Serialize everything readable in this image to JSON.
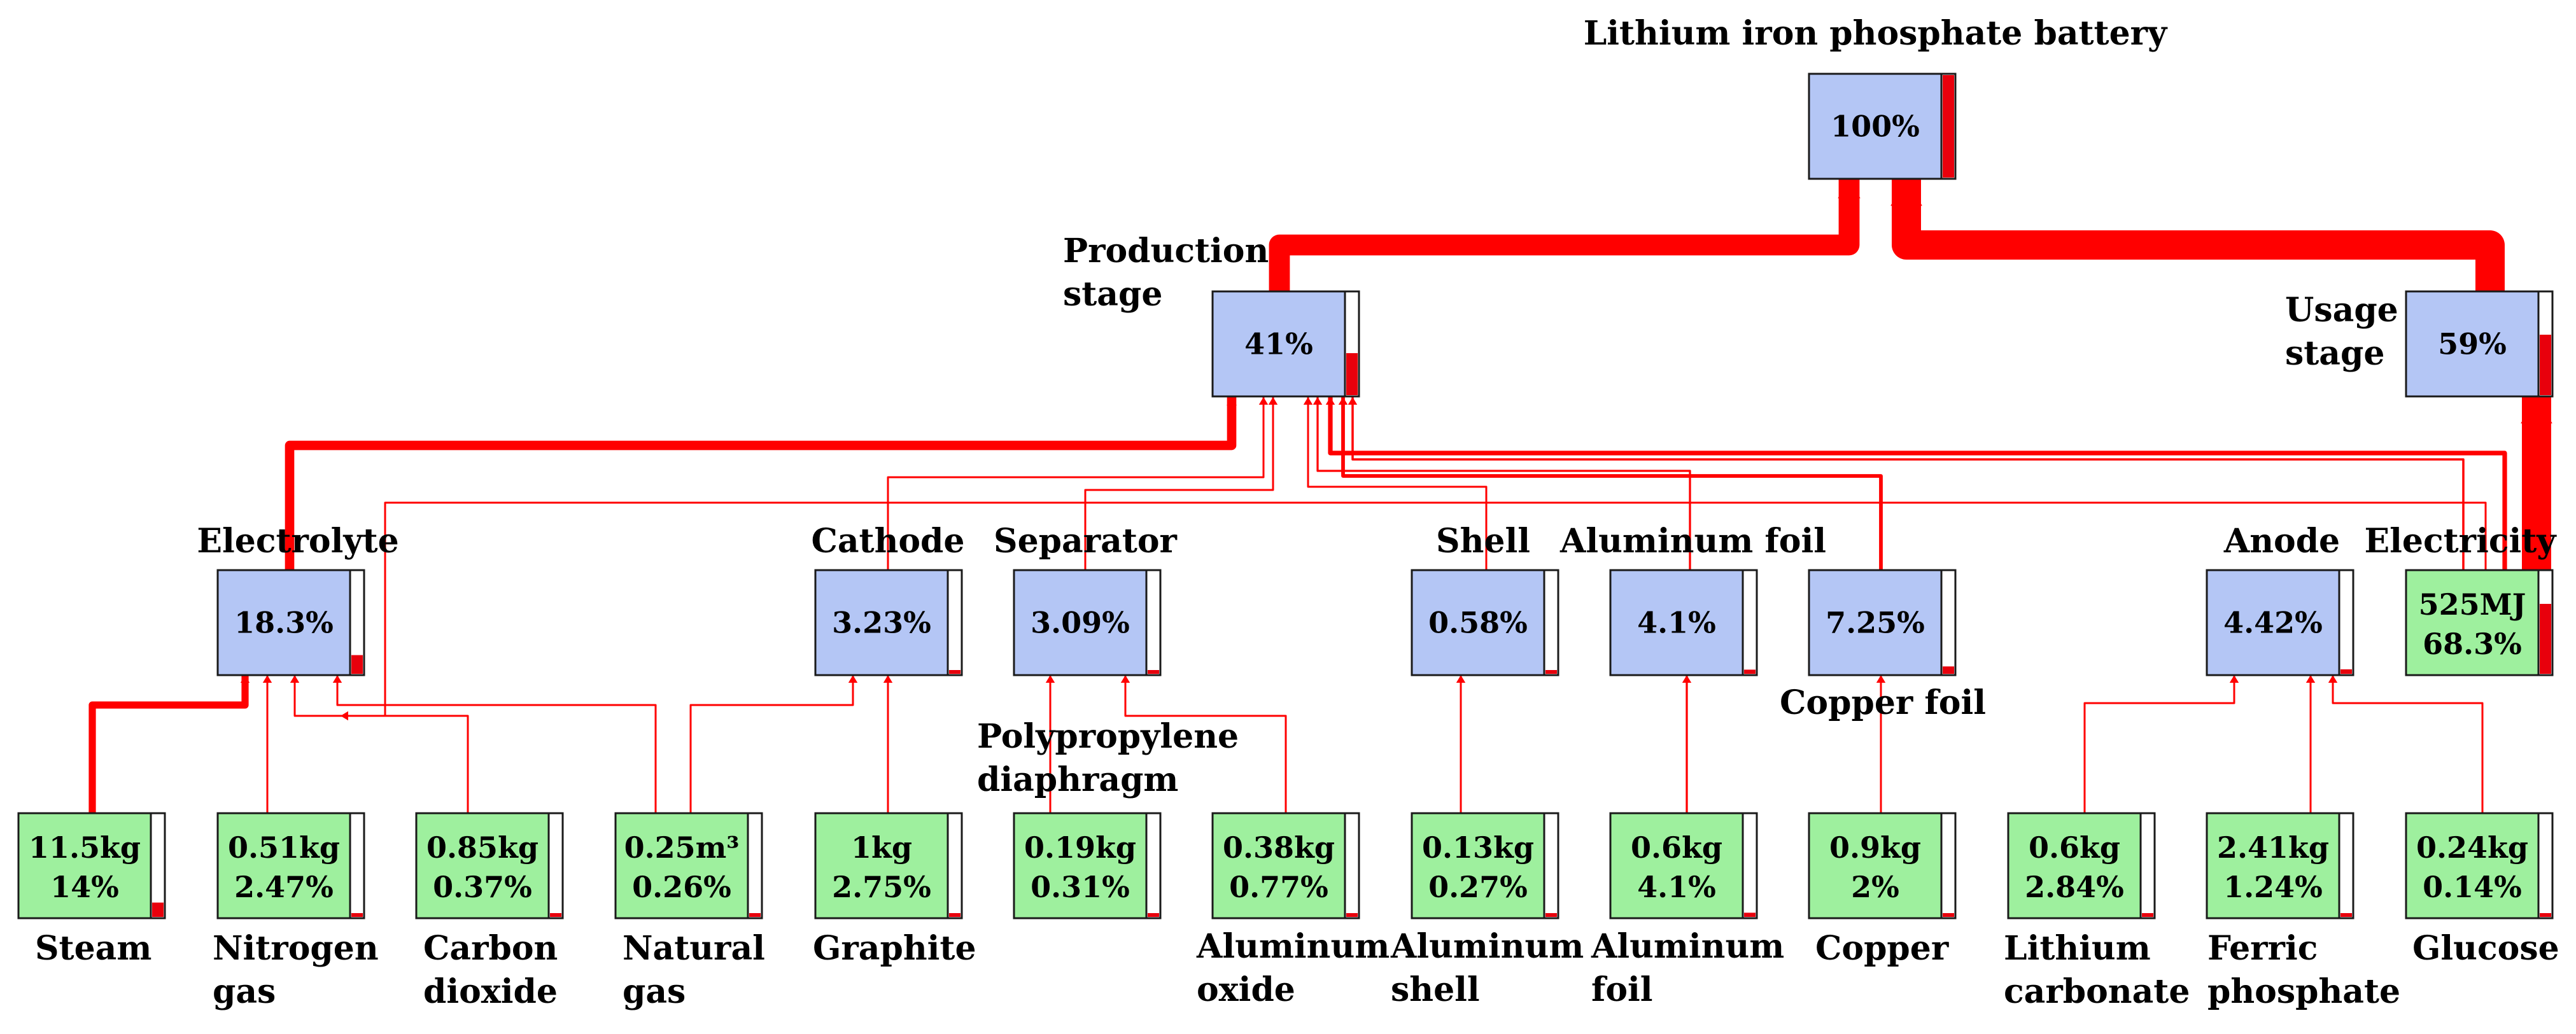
{
  "colors": {
    "process_fill": "#b4c6f5",
    "input_fill": "#9ef09e",
    "flow": "#ff0000",
    "gauge": "#e8000c"
  },
  "nodes": {
    "battery": {
      "label": [
        "Lithium iron phosphate battery"
      ],
      "values": [
        "100%"
      ],
      "level": 1.0,
      "kind": "process"
    },
    "production": {
      "label": [
        "Production",
        "stage"
      ],
      "values": [
        "41%"
      ],
      "level": 0.41,
      "kind": "process"
    },
    "usage": {
      "label": [
        "Usage",
        "stage"
      ],
      "values": [
        "59%"
      ],
      "level": 0.59,
      "kind": "process"
    },
    "electrolyte": {
      "label": [
        "Electrolyte"
      ],
      "values": [
        "18.3%"
      ],
      "level": 0.183,
      "kind": "process"
    },
    "cathode": {
      "label": [
        "Cathode"
      ],
      "values": [
        "3.23%"
      ],
      "level": 0.0323,
      "kind": "process"
    },
    "separator": {
      "label": [
        "Separator"
      ],
      "values": [
        "3.09%"
      ],
      "level": 0.0309,
      "kind": "process"
    },
    "shell": {
      "label": [
        "Shell"
      ],
      "values": [
        "0.58%"
      ],
      "level": 0.0058,
      "kind": "process"
    },
    "alfoil_p": {
      "label": [
        "Aluminum foil"
      ],
      "values": [
        "4.1%"
      ],
      "level": 0.041,
      "kind": "process"
    },
    "cufoil": {
      "label": [
        "Copper foil"
      ],
      "values": [
        "7.25%"
      ],
      "level": 0.0725,
      "kind": "process"
    },
    "anode": {
      "label": [
        "Anode"
      ],
      "values": [
        "4.42%"
      ],
      "level": 0.0442,
      "kind": "process"
    },
    "electricity": {
      "label": [
        "Electricity"
      ],
      "values": [
        "525MJ",
        "68.3%"
      ],
      "level": 0.683,
      "kind": "input"
    },
    "steam": {
      "label": [
        "Steam"
      ],
      "values": [
        "11.5kg",
        "14%"
      ],
      "level": 0.14,
      "kind": "input"
    },
    "nitrogen": {
      "label": [
        "Nitrogen",
        "gas"
      ],
      "values": [
        "0.51kg",
        "2.47%"
      ],
      "level": 0.0247,
      "kind": "input"
    },
    "co2": {
      "label": [
        "Carbon",
        "dioxide"
      ],
      "values": [
        "0.85kg",
        "0.37%"
      ],
      "level": 0.0037,
      "kind": "input"
    },
    "natgas": {
      "label": [
        "Natural",
        "gas"
      ],
      "values": [
        "0.25m³",
        "0.26%"
      ],
      "level": 0.0026,
      "kind": "input"
    },
    "graphite": {
      "label": [
        "Graphite"
      ],
      "values": [
        "1kg",
        "2.75%"
      ],
      "level": 0.0275,
      "kind": "input"
    },
    "pp": {
      "label": [
        "Polypropylene",
        "diaphragm"
      ],
      "values": [
        "0.19kg",
        "0.31%"
      ],
      "level": 0.0031,
      "kind": "input"
    },
    "al2o3": {
      "label": [
        "Aluminum",
        "oxide"
      ],
      "values": [
        "0.38kg",
        "0.77%"
      ],
      "level": 0.0077,
      "kind": "input"
    },
    "alshell": {
      "label": [
        "Aluminum",
        "shell"
      ],
      "values": [
        "0.13kg",
        "0.27%"
      ],
      "level": 0.0027,
      "kind": "input"
    },
    "alfoil_i": {
      "label": [
        "Aluminum",
        "foil"
      ],
      "values": [
        "0.6kg",
        "4.1%"
      ],
      "level": 0.041,
      "kind": "input"
    },
    "copper": {
      "label": [
        "Copper"
      ],
      "values": [
        "0.9kg",
        "2%"
      ],
      "level": 0.02,
      "kind": "input"
    },
    "li2co3": {
      "label": [
        "Lithium",
        "carbonate"
      ],
      "values": [
        "0.6kg",
        "2.84%"
      ],
      "level": 0.0284,
      "kind": "input"
    },
    "fepo4": {
      "label": [
        "Ferric",
        "phosphate"
      ],
      "values": [
        "2.41kg",
        "1.24%"
      ],
      "level": 0.0124,
      "kind": "input"
    },
    "glucose": {
      "label": [
        "Glucose"
      ],
      "values": [
        "0.24kg",
        "0.14%"
      ],
      "level": 0.0014,
      "kind": "input"
    }
  },
  "links": [
    {
      "from": "production",
      "to": "battery",
      "share": 0.41
    },
    {
      "from": "usage",
      "to": "battery",
      "share": 0.59
    },
    {
      "from": "electricity",
      "to": "usage",
      "share": 0.59
    },
    {
      "from": "electricity",
      "to": "production",
      "share": 0.09
    },
    {
      "from": "electrolyte",
      "to": "production",
      "share": 0.183
    },
    {
      "from": "cathode",
      "to": "production",
      "share": 0.0323
    },
    {
      "from": "separator",
      "to": "production",
      "share": 0.0309
    },
    {
      "from": "shell",
      "to": "production",
      "share": 0.0058
    },
    {
      "from": "alfoil_p",
      "to": "production",
      "share": 0.041
    },
    {
      "from": "cufoil",
      "to": "production",
      "share": 0.0725
    },
    {
      "from": "anode",
      "to": "production",
      "share": 0.0442
    },
    {
      "from": "steam",
      "to": "electrolyte",
      "share": 0.14
    },
    {
      "from": "nitrogen",
      "to": "electrolyte",
      "share": 0.0247
    },
    {
      "from": "co2",
      "to": "electrolyte",
      "share": 0.0037
    },
    {
      "from": "natgas",
      "to": "electrolyte",
      "share": 0.0026
    },
    {
      "from": "electricity",
      "to": "electrolyte",
      "share": 0.01
    },
    {
      "from": "graphite",
      "to": "cathode",
      "share": 0.0275
    },
    {
      "from": "natgas",
      "to": "cathode",
      "share": 0.0026
    },
    {
      "from": "pp",
      "to": "separator",
      "share": 0.0031
    },
    {
      "from": "al2o3",
      "to": "separator",
      "share": 0.0077
    },
    {
      "from": "alshell",
      "to": "shell",
      "share": 0.0027
    },
    {
      "from": "alfoil_i",
      "to": "alfoil_p",
      "share": 0.041
    },
    {
      "from": "copper",
      "to": "cufoil",
      "share": 0.02
    },
    {
      "from": "li2co3",
      "to": "anode",
      "share": 0.0284
    },
    {
      "from": "fepo4",
      "to": "anode",
      "share": 0.0124
    },
    {
      "from": "glucose",
      "to": "anode",
      "share": 0.0014
    }
  ]
}
